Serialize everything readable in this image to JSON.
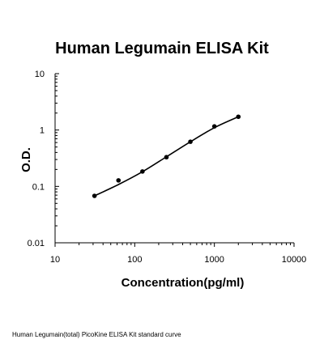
{
  "chart_data": {
    "type": "scatter",
    "title": "Human Legumain ELISA Kit",
    "xlabel": "Concentration(pg/ml)",
    "ylabel": "O.D.",
    "xscale": "log",
    "yscale": "log",
    "xlim": [
      10,
      10000
    ],
    "ylim": [
      0.01,
      10
    ],
    "xticks": [
      {
        "v": 10,
        "label": "10"
      },
      {
        "v": 100,
        "label": "100"
      },
      {
        "v": 1000,
        "label": "1000"
      },
      {
        "v": 10000,
        "label": "10000"
      }
    ],
    "yticks": [
      {
        "v": 10,
        "label": "10"
      },
      {
        "v": 1,
        "label": "1"
      },
      {
        "v": 0.1,
        "label": "0.1"
      },
      {
        "v": 0.01,
        "label": "0.01"
      }
    ],
    "grid": false,
    "legend": "none",
    "series": [
      {
        "points": [
          {
            "x": 31.25,
            "y": 0.068
          },
          {
            "x": 62.5,
            "y": 0.128
          },
          {
            "x": 125,
            "y": 0.184
          },
          {
            "x": 250,
            "y": 0.33
          },
          {
            "x": 500,
            "y": 0.62
          },
          {
            "x": 1000,
            "y": 1.16
          },
          {
            "x": 2000,
            "y": 1.72
          }
        ],
        "color": "#000000"
      }
    ],
    "fit_curve": {
      "points": [
        {
          "x": 31.25,
          "y": 0.068
        },
        {
          "x": 62.5,
          "y": 0.108
        },
        {
          "x": 125,
          "y": 0.182
        },
        {
          "x": 250,
          "y": 0.335
        },
        {
          "x": 500,
          "y": 0.62
        },
        {
          "x": 1000,
          "y": 1.1
        },
        {
          "x": 2000,
          "y": 1.72
        }
      ],
      "color": "#000000"
    }
  },
  "caption": "Human Legumain(total) PicoKine ELISA Kit standard curve"
}
